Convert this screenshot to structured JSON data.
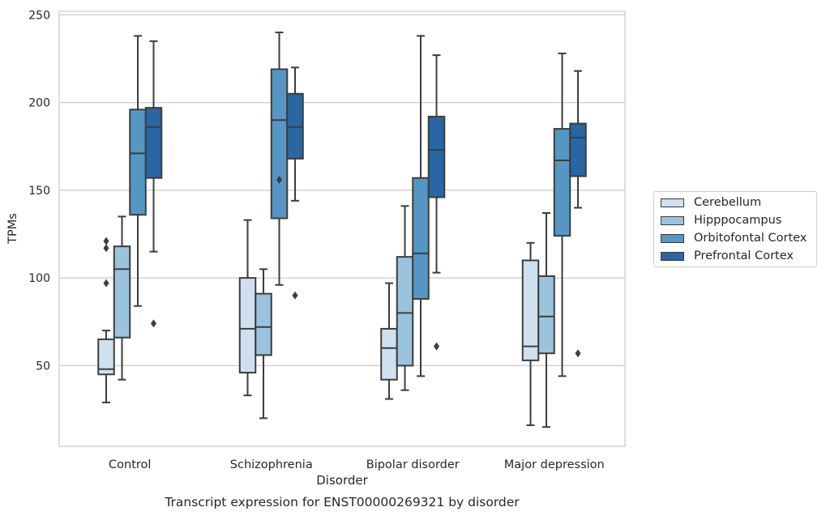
{
  "chart_data": {
    "type": "box",
    "title": "Transcript expression for ENST00000269321 by disorder",
    "xlabel": "Disorder",
    "ylabel": "TPMs",
    "categories": [
      "Control",
      "Schizophrenia",
      "Bipolar disorder",
      "Major depression"
    ],
    "yticks": [
      50,
      100,
      150,
      200,
      250
    ],
    "ylim": [
      4,
      252
    ],
    "grid": true,
    "legend_position": "right",
    "series": [
      {
        "name": "Cerebellum",
        "color": "#cfe0f0",
        "boxes": [
          {
            "whisker_low": 29,
            "q1": 45,
            "median": 48,
            "q3": 65,
            "whisker_high": 70,
            "outliers": [
              97,
              117,
              121
            ]
          },
          {
            "whisker_low": 33,
            "q1": 46,
            "median": 71,
            "q3": 100,
            "whisker_high": 133,
            "outliers": []
          },
          {
            "whisker_low": 31,
            "q1": 42,
            "median": 60,
            "q3": 71,
            "whisker_high": 97,
            "outliers": []
          },
          {
            "whisker_low": 16,
            "q1": 53,
            "median": 61,
            "q3": 110,
            "whisker_high": 120,
            "outliers": []
          }
        ]
      },
      {
        "name": "Hipppocampus",
        "color": "#9ac4dd",
        "boxes": [
          {
            "whisker_low": 42,
            "q1": 66,
            "median": 105,
            "q3": 118,
            "whisker_high": 135,
            "outliers": []
          },
          {
            "whisker_low": 20,
            "q1": 56,
            "median": 72,
            "q3": 91,
            "whisker_high": 105,
            "outliers": []
          },
          {
            "whisker_low": 36,
            "q1": 50,
            "median": 80,
            "q3": 112,
            "whisker_high": 141,
            "outliers": []
          },
          {
            "whisker_low": 15,
            "q1": 57,
            "median": 78,
            "q3": 101,
            "whisker_high": 137,
            "outliers": []
          }
        ]
      },
      {
        "name": "Orbitofontal Cortex",
        "color": "#5596c4",
        "boxes": [
          {
            "whisker_low": 84,
            "q1": 136,
            "median": 171,
            "q3": 196,
            "whisker_high": 238,
            "outliers": []
          },
          {
            "whisker_low": 96,
            "q1": 134,
            "median": 190,
            "q3": 219,
            "whisker_high": 240,
            "outliers": [
              156
            ]
          },
          {
            "whisker_low": 44,
            "q1": 88,
            "median": 114,
            "q3": 157,
            "whisker_high": 238,
            "outliers": []
          },
          {
            "whisker_low": 44,
            "q1": 124,
            "median": 167,
            "q3": 185,
            "whisker_high": 228,
            "outliers": []
          }
        ]
      },
      {
        "name": "Prefrontal Cortex",
        "color": "#2866a4",
        "boxes": [
          {
            "whisker_low": 115,
            "q1": 157,
            "median": 186,
            "q3": 197,
            "whisker_high": 235,
            "outliers": [
              74
            ]
          },
          {
            "whisker_low": 144,
            "q1": 168,
            "median": 186,
            "q3": 205,
            "whisker_high": 220,
            "outliers": [
              90
            ]
          },
          {
            "whisker_low": 103,
            "q1": 146,
            "median": 173,
            "q3": 192,
            "whisker_high": 227,
            "outliers": [
              61
            ]
          },
          {
            "whisker_low": 140,
            "q1": 158,
            "median": 180,
            "q3": 188,
            "whisker_high": 218,
            "outliers": [
              57
            ]
          }
        ]
      }
    ]
  }
}
